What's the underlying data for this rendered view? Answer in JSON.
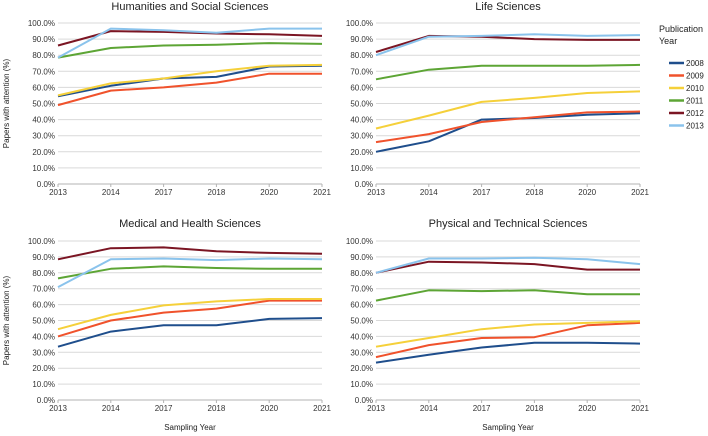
{
  "chart_data": [
    {
      "type": "line",
      "title": "Humanities and Social Sciences",
      "categories": [
        "2013",
        "2014",
        "2017",
        "2018",
        "2020",
        "2021"
      ],
      "ylabel": "Papers with attention (%)",
      "xlabel": "",
      "ylim": [
        0,
        100
      ],
      "series": [
        {
          "name": "2008",
          "values": [
            54.5,
            61.0,
            65.5,
            66.5,
            73.0,
            73.5
          ]
        },
        {
          "name": "2009",
          "values": [
            49.0,
            58.0,
            60.0,
            63.0,
            68.5,
            68.5
          ]
        },
        {
          "name": "2010",
          "values": [
            55.0,
            62.5,
            65.5,
            70.0,
            73.5,
            74.0
          ]
        },
        {
          "name": "2011",
          "values": [
            78.5,
            84.5,
            86.0,
            86.5,
            87.5,
            87.0
          ]
        },
        {
          "name": "2012",
          "values": [
            86.0,
            95.0,
            94.5,
            93.5,
            93.0,
            92.0
          ]
        },
        {
          "name": "2013",
          "values": [
            78.5,
            96.5,
            95.5,
            94.0,
            96.5,
            96.5
          ]
        }
      ]
    },
    {
      "type": "line",
      "title": "Life Sciences",
      "categories": [
        "2013",
        "2014",
        "2017",
        "2018",
        "2020",
        "2021"
      ],
      "ylabel": "",
      "xlabel": "",
      "ylim": [
        0,
        100
      ],
      "series": [
        {
          "name": "2008",
          "values": [
            20.0,
            26.5,
            40.0,
            41.0,
            43.0,
            44.0
          ]
        },
        {
          "name": "2009",
          "values": [
            26.0,
            31.0,
            38.5,
            41.5,
            44.5,
            45.0
          ]
        },
        {
          "name": "2010",
          "values": [
            34.5,
            42.5,
            51.0,
            53.5,
            56.5,
            57.5
          ]
        },
        {
          "name": "2011",
          "values": [
            65.0,
            71.0,
            73.5,
            73.5,
            73.5,
            74.0
          ]
        },
        {
          "name": "2012",
          "values": [
            82.0,
            92.0,
            91.5,
            90.0,
            89.5,
            89.5
          ]
        },
        {
          "name": "2013",
          "values": [
            80.0,
            91.5,
            92.0,
            93.0,
            92.0,
            92.5
          ]
        }
      ]
    },
    {
      "type": "line",
      "title": "Medical and Health Sciences",
      "categories": [
        "2013",
        "2014",
        "2017",
        "2018",
        "2020",
        "2021"
      ],
      "ylabel": "Papers with attention (%)",
      "xlabel": "Sampling Year",
      "ylim": [
        0,
        100
      ],
      "series": [
        {
          "name": "2008",
          "values": [
            33.5,
            43.0,
            47.0,
            47.0,
            51.0,
            51.5
          ]
        },
        {
          "name": "2009",
          "values": [
            40.0,
            50.0,
            55.0,
            57.5,
            62.5,
            62.5
          ]
        },
        {
          "name": "2010",
          "values": [
            44.5,
            53.5,
            59.5,
            62.0,
            63.5,
            63.5
          ]
        },
        {
          "name": "2011",
          "values": [
            76.5,
            82.5,
            84.0,
            83.0,
            82.5,
            82.5
          ]
        },
        {
          "name": "2012",
          "values": [
            88.5,
            95.5,
            96.0,
            93.5,
            92.5,
            92.0
          ]
        },
        {
          "name": "2013",
          "values": [
            71.0,
            88.5,
            89.0,
            88.0,
            89.0,
            88.5
          ]
        }
      ]
    },
    {
      "type": "line",
      "title": "Physical and Technical Sciences",
      "categories": [
        "2013",
        "2014",
        "2017",
        "2018",
        "2020",
        "2021"
      ],
      "ylabel": "",
      "xlabel": "Sampling Year",
      "ylim": [
        0,
        100
      ],
      "series": [
        {
          "name": "2008",
          "values": [
            23.5,
            28.5,
            33.0,
            36.0,
            36.0,
            35.5
          ]
        },
        {
          "name": "2009",
          "values": [
            27.0,
            34.5,
            39.0,
            39.5,
            47.0,
            48.5
          ]
        },
        {
          "name": "2010",
          "values": [
            33.5,
            39.0,
            44.5,
            47.5,
            48.5,
            49.5
          ]
        },
        {
          "name": "2011",
          "values": [
            62.5,
            69.0,
            68.5,
            69.0,
            66.5,
            66.5
          ]
        },
        {
          "name": "2012",
          "values": [
            80.0,
            87.0,
            86.5,
            85.5,
            82.0,
            82.0
          ]
        },
        {
          "name": "2013",
          "values": [
            80.0,
            89.0,
            89.0,
            89.5,
            88.5,
            85.5
          ]
        }
      ]
    }
  ],
  "legend": {
    "title_line1": "Publication",
    "title_line2": "Year",
    "items": [
      {
        "label": "2008",
        "color": "#1f4e8c"
      },
      {
        "label": "2009",
        "color": "#f0522c"
      },
      {
        "label": "2010",
        "color": "#f5d03a"
      },
      {
        "label": "2011",
        "color": "#5da535"
      },
      {
        "label": "2012",
        "color": "#7b1523"
      },
      {
        "label": "2013",
        "color": "#8ac3ec"
      }
    ]
  }
}
